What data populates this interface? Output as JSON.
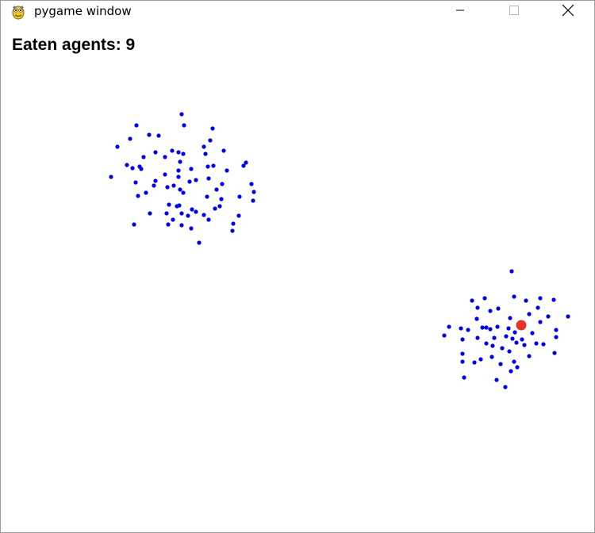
{
  "window": {
    "title": "pygame window"
  },
  "hud": {
    "score_text": "Eaten agents: 9"
  },
  "colors": {
    "agent": "#0000ee",
    "predator": "#e8332a"
  },
  "icons": {
    "app": "pygame-snake-icon",
    "minimize": "minimize-icon",
    "maximize": "maximize-icon",
    "close": "close-icon"
  }
}
